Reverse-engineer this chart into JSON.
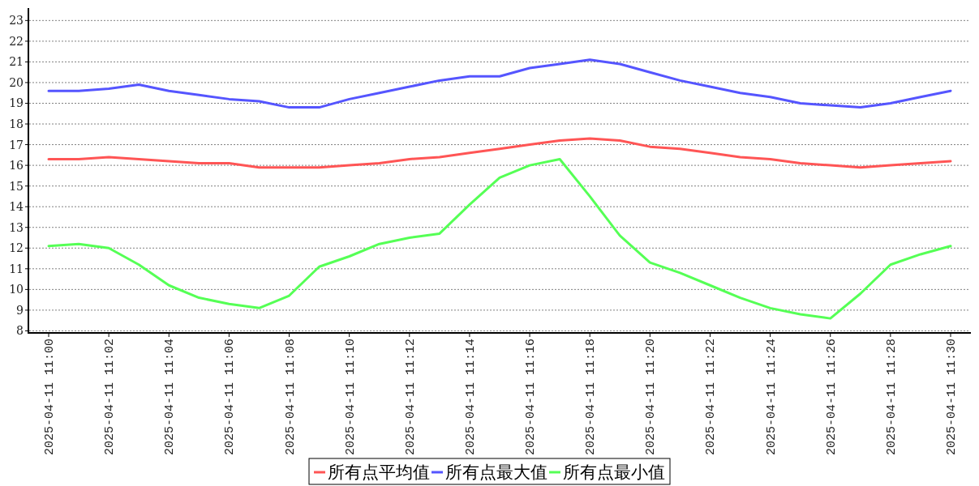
{
  "chart_data": {
    "type": "line",
    "categories": [
      "2025-04-11 11:00",
      null,
      "2025-04-11 11:02",
      null,
      "2025-04-11 11:04",
      null,
      "2025-04-11 11:06",
      null,
      "2025-04-11 11:08",
      null,
      "2025-04-11 11:10",
      null,
      "2025-04-11 11:12",
      null,
      "2025-04-11 11:14",
      null,
      "2025-04-11 11:16",
      null,
      "2025-04-11 11:18",
      null,
      "2025-04-11 11:20",
      null,
      "2025-04-11 11:22",
      null,
      "2025-04-11 11:24",
      null,
      "2025-04-11 11:26",
      null,
      "2025-04-11 11:28",
      null,
      "2025-04-11 11:30"
    ],
    "series": [
      {
        "name": "所有点平均值",
        "color": "#ff5555",
        "values": [
          16.3,
          16.3,
          16.4,
          16.3,
          16.2,
          16.1,
          16.1,
          15.9,
          15.9,
          15.9,
          16.0,
          16.1,
          16.3,
          16.4,
          16.6,
          16.8,
          17.0,
          17.2,
          17.3,
          17.2,
          16.9,
          16.8,
          16.6,
          16.4,
          16.3,
          16.1,
          16.0,
          15.9,
          16.0,
          16.1,
          16.2
        ]
      },
      {
        "name": "所有点最大值",
        "color": "#5555ff",
        "values": [
          19.6,
          19.6,
          19.7,
          19.9,
          19.6,
          19.4,
          19.2,
          19.1,
          18.8,
          18.8,
          19.2,
          19.5,
          19.8,
          20.1,
          20.3,
          20.3,
          20.7,
          20.9,
          21.1,
          20.9,
          20.5,
          20.1,
          19.8,
          19.5,
          19.3,
          19.0,
          18.9,
          18.8,
          19.0,
          19.3,
          19.6
        ]
      },
      {
        "name": "所有点最小值",
        "color": "#55ff55",
        "values": [
          12.1,
          12.2,
          12.0,
          11.2,
          10.2,
          9.6,
          9.3,
          9.1,
          9.7,
          11.1,
          11.6,
          12.2,
          12.5,
          12.7,
          14.1,
          15.4,
          16.0,
          16.3,
          14.5,
          12.6,
          11.3,
          10.8,
          10.2,
          9.6,
          9.1,
          8.8,
          8.6,
          9.8,
          11.2,
          11.7,
          12.1
        ]
      }
    ],
    "ylim": [
      7.9,
      23.6
    ],
    "yticks": [
      8,
      9,
      10,
      11,
      12,
      13,
      14,
      15,
      16,
      17,
      18,
      19,
      20,
      21,
      22,
      23
    ],
    "grid": "y",
    "legend": "bottom",
    "line_style": "solid"
  }
}
